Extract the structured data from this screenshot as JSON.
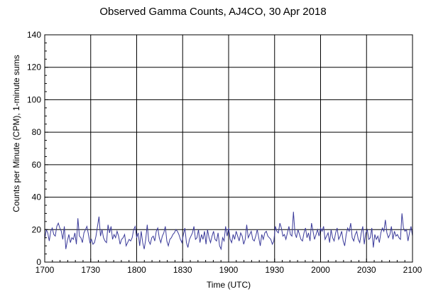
{
  "chart_data": {
    "type": "line",
    "title": "Observed Gamma Counts, AJ4CO, 30 Apr 2018",
    "xlabel": "Time (UTC)",
    "ylabel": "Counts per Minute (CPM), 1-minute sums",
    "xlim_minutes": [
      0,
      240
    ],
    "ylim": [
      0,
      140
    ],
    "x_ticks": [
      "1700",
      "1730",
      "1800",
      "1830",
      "1900",
      "1930",
      "2000",
      "2030",
      "2100"
    ],
    "y_ticks": [
      0,
      20,
      40,
      60,
      80,
      100,
      120,
      140
    ],
    "grid": true,
    "line_color": "#3a3a9a",
    "series": [
      {
        "name": "",
        "values": [
          14,
          20,
          18,
          13,
          19,
          21,
          17,
          16,
          22,
          24,
          21,
          19,
          14,
          22,
          8,
          13,
          17,
          12,
          15,
          14,
          18,
          11,
          27,
          16,
          15,
          12,
          18,
          20,
          22,
          17,
          12,
          14,
          11,
          12,
          16,
          22,
          28,
          16,
          20,
          15,
          13,
          12,
          23,
          18,
          22,
          14,
          17,
          15,
          19,
          16,
          11,
          14,
          15,
          17,
          10,
          12,
          14,
          13,
          15,
          20,
          22,
          15,
          18,
          10,
          19,
          12,
          8,
          14,
          23,
          13,
          11,
          15,
          16,
          13,
          19,
          21,
          15,
          12,
          16,
          18,
          22,
          13,
          10,
          14,
          15,
          17,
          18,
          20,
          19,
          17,
          14,
          12,
          17,
          21,
          12,
          9,
          14,
          16,
          18,
          22,
          14,
          15,
          20,
          12,
          17,
          14,
          19,
          11,
          20,
          15,
          12,
          16,
          19,
          14,
          13,
          18,
          10,
          8,
          15,
          13,
          22,
          16,
          21,
          14,
          12,
          17,
          14,
          19,
          16,
          13,
          18,
          16,
          11,
          14,
          23,
          15,
          17,
          19,
          14,
          13,
          16,
          20,
          15,
          10,
          17,
          14,
          18,
          19,
          16,
          15,
          14,
          11,
          13,
          22,
          19,
          18,
          24,
          21,
          16,
          17,
          14,
          18,
          22,
          17,
          16,
          31,
          18,
          15,
          20,
          17,
          14,
          13,
          18,
          21,
          15,
          18,
          13,
          24,
          19,
          14,
          17,
          20,
          16,
          21,
          19,
          22,
          14,
          16,
          18,
          12,
          20,
          15,
          13,
          18,
          21,
          14,
          16,
          19,
          13,
          10,
          17,
          21,
          19,
          24,
          15,
          13,
          17,
          19,
          14,
          12,
          18,
          22,
          11,
          18,
          20,
          14,
          15,
          21,
          9,
          17,
          14,
          16,
          12,
          18,
          21,
          19,
          26,
          18,
          15,
          17,
          22,
          14,
          19,
          16,
          17,
          15,
          14,
          30,
          21,
          19,
          20,
          13,
          18,
          22,
          16
        ]
      }
    ]
  }
}
